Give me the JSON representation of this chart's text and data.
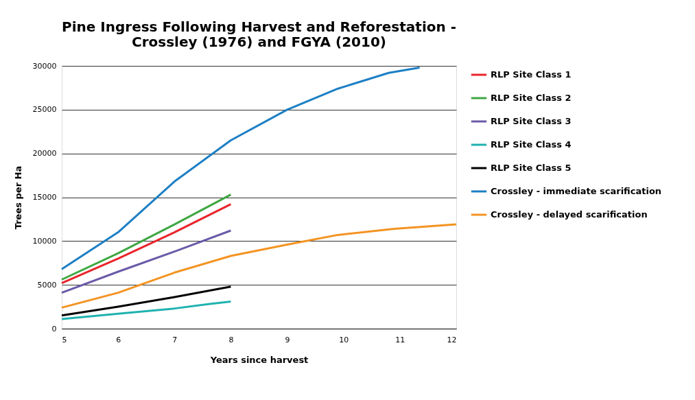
{
  "chart_data": {
    "type": "line",
    "title": "Pine Ingress Following Harvest and Reforestation -\nCrossley (1976) and FGYA (2010)",
    "xlabel": "Years since harvest",
    "ylabel": "Trees per Ha",
    "xlim": [
      5,
      12
    ],
    "xticks": [
      5,
      6,
      7,
      8,
      9,
      10,
      11,
      12
    ],
    "ylim": [
      0,
      30000
    ],
    "yticks": [
      0,
      5000,
      10000,
      15000,
      20000,
      25000,
      30000
    ],
    "grid": "y",
    "legend": "right",
    "line_style": "solid",
    "marker": "none",
    "series": [
      {
        "name": "RLP Site Class 1",
        "color": "#e8242b",
        "x": [
          5,
          6,
          7,
          8
        ],
        "values": [
          5200,
          8000,
          11000,
          14200
        ]
      },
      {
        "name": "RLP Site Class 2",
        "color": "#3fa742",
        "x": [
          5,
          6,
          7,
          8
        ],
        "values": [
          5600,
          8600,
          11900,
          15300
        ]
      },
      {
        "name": "RLP Site Class 3",
        "color": "#6a5aa8",
        "x": [
          5,
          6,
          7,
          8
        ],
        "values": [
          4100,
          6500,
          8800,
          11200
        ]
      },
      {
        "name": "RLP Site Class 4",
        "color": "#1fb2b0",
        "x": [
          5,
          6,
          7,
          7.6,
          8
        ],
        "values": [
          1100,
          1700,
          2300,
          2800,
          3100
        ]
      },
      {
        "name": "RLP Site Class 5",
        "color": "#000000",
        "x": [
          5,
          6,
          7,
          8
        ],
        "values": [
          1500,
          2500,
          3600,
          4800
        ]
      },
      {
        "name": "Crossley - immediate scarification",
        "color": "#1d7fc4",
        "x": [
          5,
          6,
          7,
          8,
          9,
          9.9,
          10.8,
          11.35
        ],
        "values": [
          6800,
          11000,
          16800,
          21500,
          25000,
          27400,
          29200,
          29800
        ]
      },
      {
        "name": "Crossley - delayed scarification",
        "color": "#f39322",
        "x": [
          5,
          6,
          7,
          8,
          9,
          9.9,
          10.9,
          12
        ],
        "values": [
          2400,
          4100,
          6400,
          8300,
          9600,
          10700,
          11400,
          11900
        ]
      }
    ]
  }
}
